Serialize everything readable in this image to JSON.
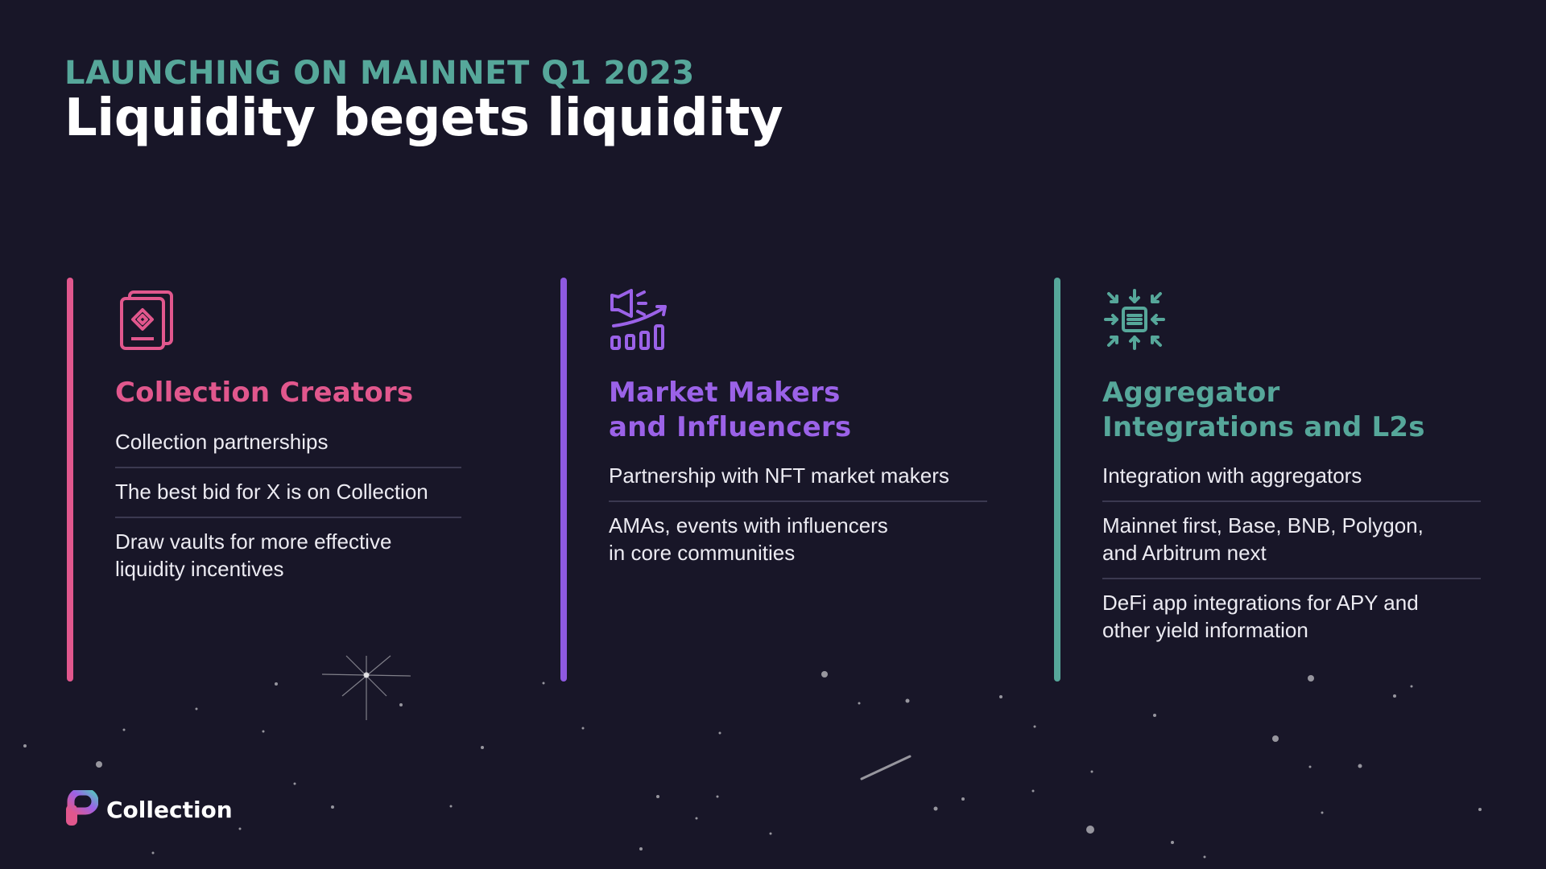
{
  "header": {
    "eyebrow": "LAUNCHING ON MAINNET Q1 2023",
    "title": "Liquidity begets liquidity"
  },
  "columns": [
    {
      "heading_lines": [
        "Collection Creators"
      ],
      "icon": "document-diamond-icon",
      "color": "#e1578d",
      "items": [
        [
          "Collection partnerships"
        ],
        [
          "The best bid for X is on Collection"
        ],
        [
          "Draw vaults for more effective",
          "liquidity incentives"
        ]
      ]
    },
    {
      "heading_lines": [
        "Market Makers",
        "and Influencers"
      ],
      "icon": "megaphone-growth-icon",
      "color": "#9b62e8",
      "items": [
        [
          "Partnership with NFT market makers"
        ],
        [
          "AMAs, events with influencers",
          "in core communities"
        ]
      ]
    },
    {
      "heading_lines": [
        "Aggregator",
        "Integrations and L2s"
      ],
      "icon": "aggregate-arrows-icon",
      "color": "#56a79a",
      "items": [
        [
          "Integration with aggregators"
        ],
        [
          "Mainnet first, Base, BNB, Polygon,",
          "and Arbitrum next"
        ],
        [
          "DeFi app integrations for APY and",
          "other yield information"
        ]
      ]
    }
  ],
  "footer": {
    "logo_icon": "collection-logo-icon",
    "brand": "Collection"
  }
}
